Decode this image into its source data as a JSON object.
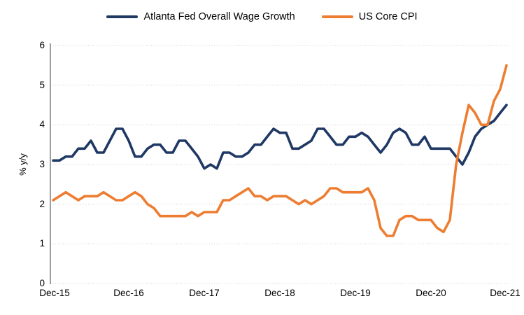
{
  "legend": {
    "position": "top-center",
    "items": [
      {
        "label": "Atlanta Fed Overall Wage Growth",
        "color": "#1f3864"
      },
      {
        "label": "US Core CPI",
        "color": "#ed7d31"
      }
    ]
  },
  "chart_data": {
    "type": "line",
    "title": "",
    "xlabel": "",
    "ylabel": "% y/y",
    "ylim": [
      0,
      6
    ],
    "y_ticks": [
      0,
      1,
      2,
      3,
      4,
      5,
      6
    ],
    "x_tick_labels": [
      "Dec-15",
      "Dec-16",
      "Dec-17",
      "Dec-18",
      "Dec-19",
      "Dec-20",
      "Dec-21"
    ],
    "x_frequency": "monthly",
    "x_start": "Dec-15",
    "x_end": "Dec-21",
    "grid": "horizontal dotted gridlines, left y-axis line only, no plot border",
    "legend_position": "top-center",
    "series": [
      {
        "name": "Atlanta Fed Overall Wage Growth",
        "color": "#1f3864",
        "values": [
          3.1,
          3.1,
          3.2,
          3.2,
          3.4,
          3.4,
          3.6,
          3.3,
          3.3,
          3.6,
          3.9,
          3.9,
          3.6,
          3.2,
          3.2,
          3.4,
          3.5,
          3.5,
          3.3,
          3.3,
          3.6,
          3.6,
          3.4,
          3.2,
          2.9,
          3.0,
          2.9,
          3.3,
          3.3,
          3.2,
          3.2,
          3.3,
          3.5,
          3.5,
          3.7,
          3.9,
          3.8,
          3.8,
          3.4,
          3.4,
          3.5,
          3.6,
          3.9,
          3.9,
          3.7,
          3.5,
          3.5,
          3.7,
          3.7,
          3.8,
          3.7,
          3.5,
          3.3,
          3.5,
          3.8,
          3.9,
          3.8,
          3.5,
          3.5,
          3.7,
          3.4,
          3.4,
          3.4,
          3.4,
          3.2,
          3.0,
          3.3,
          3.7,
          3.9,
          4.0,
          4.1,
          4.3,
          4.5
        ]
      },
      {
        "name": "US Core CPI",
        "color": "#ed7d31",
        "values": [
          2.1,
          2.2,
          2.3,
          2.2,
          2.1,
          2.2,
          2.2,
          2.2,
          2.3,
          2.2,
          2.1,
          2.1,
          2.2,
          2.3,
          2.2,
          2.0,
          1.9,
          1.7,
          1.7,
          1.7,
          1.7,
          1.7,
          1.8,
          1.7,
          1.8,
          1.8,
          1.8,
          2.1,
          2.1,
          2.2,
          2.3,
          2.4,
          2.2,
          2.2,
          2.1,
          2.2,
          2.2,
          2.2,
          2.1,
          2.0,
          2.1,
          2.0,
          2.1,
          2.2,
          2.4,
          2.4,
          2.3,
          2.3,
          2.3,
          2.3,
          2.4,
          2.1,
          1.4,
          1.2,
          1.2,
          1.6,
          1.7,
          1.7,
          1.6,
          1.6,
          1.6,
          1.4,
          1.3,
          1.6,
          3.0,
          3.8,
          4.5,
          4.3,
          4.0,
          4.0,
          4.6,
          4.9,
          5.5
        ]
      }
    ]
  }
}
